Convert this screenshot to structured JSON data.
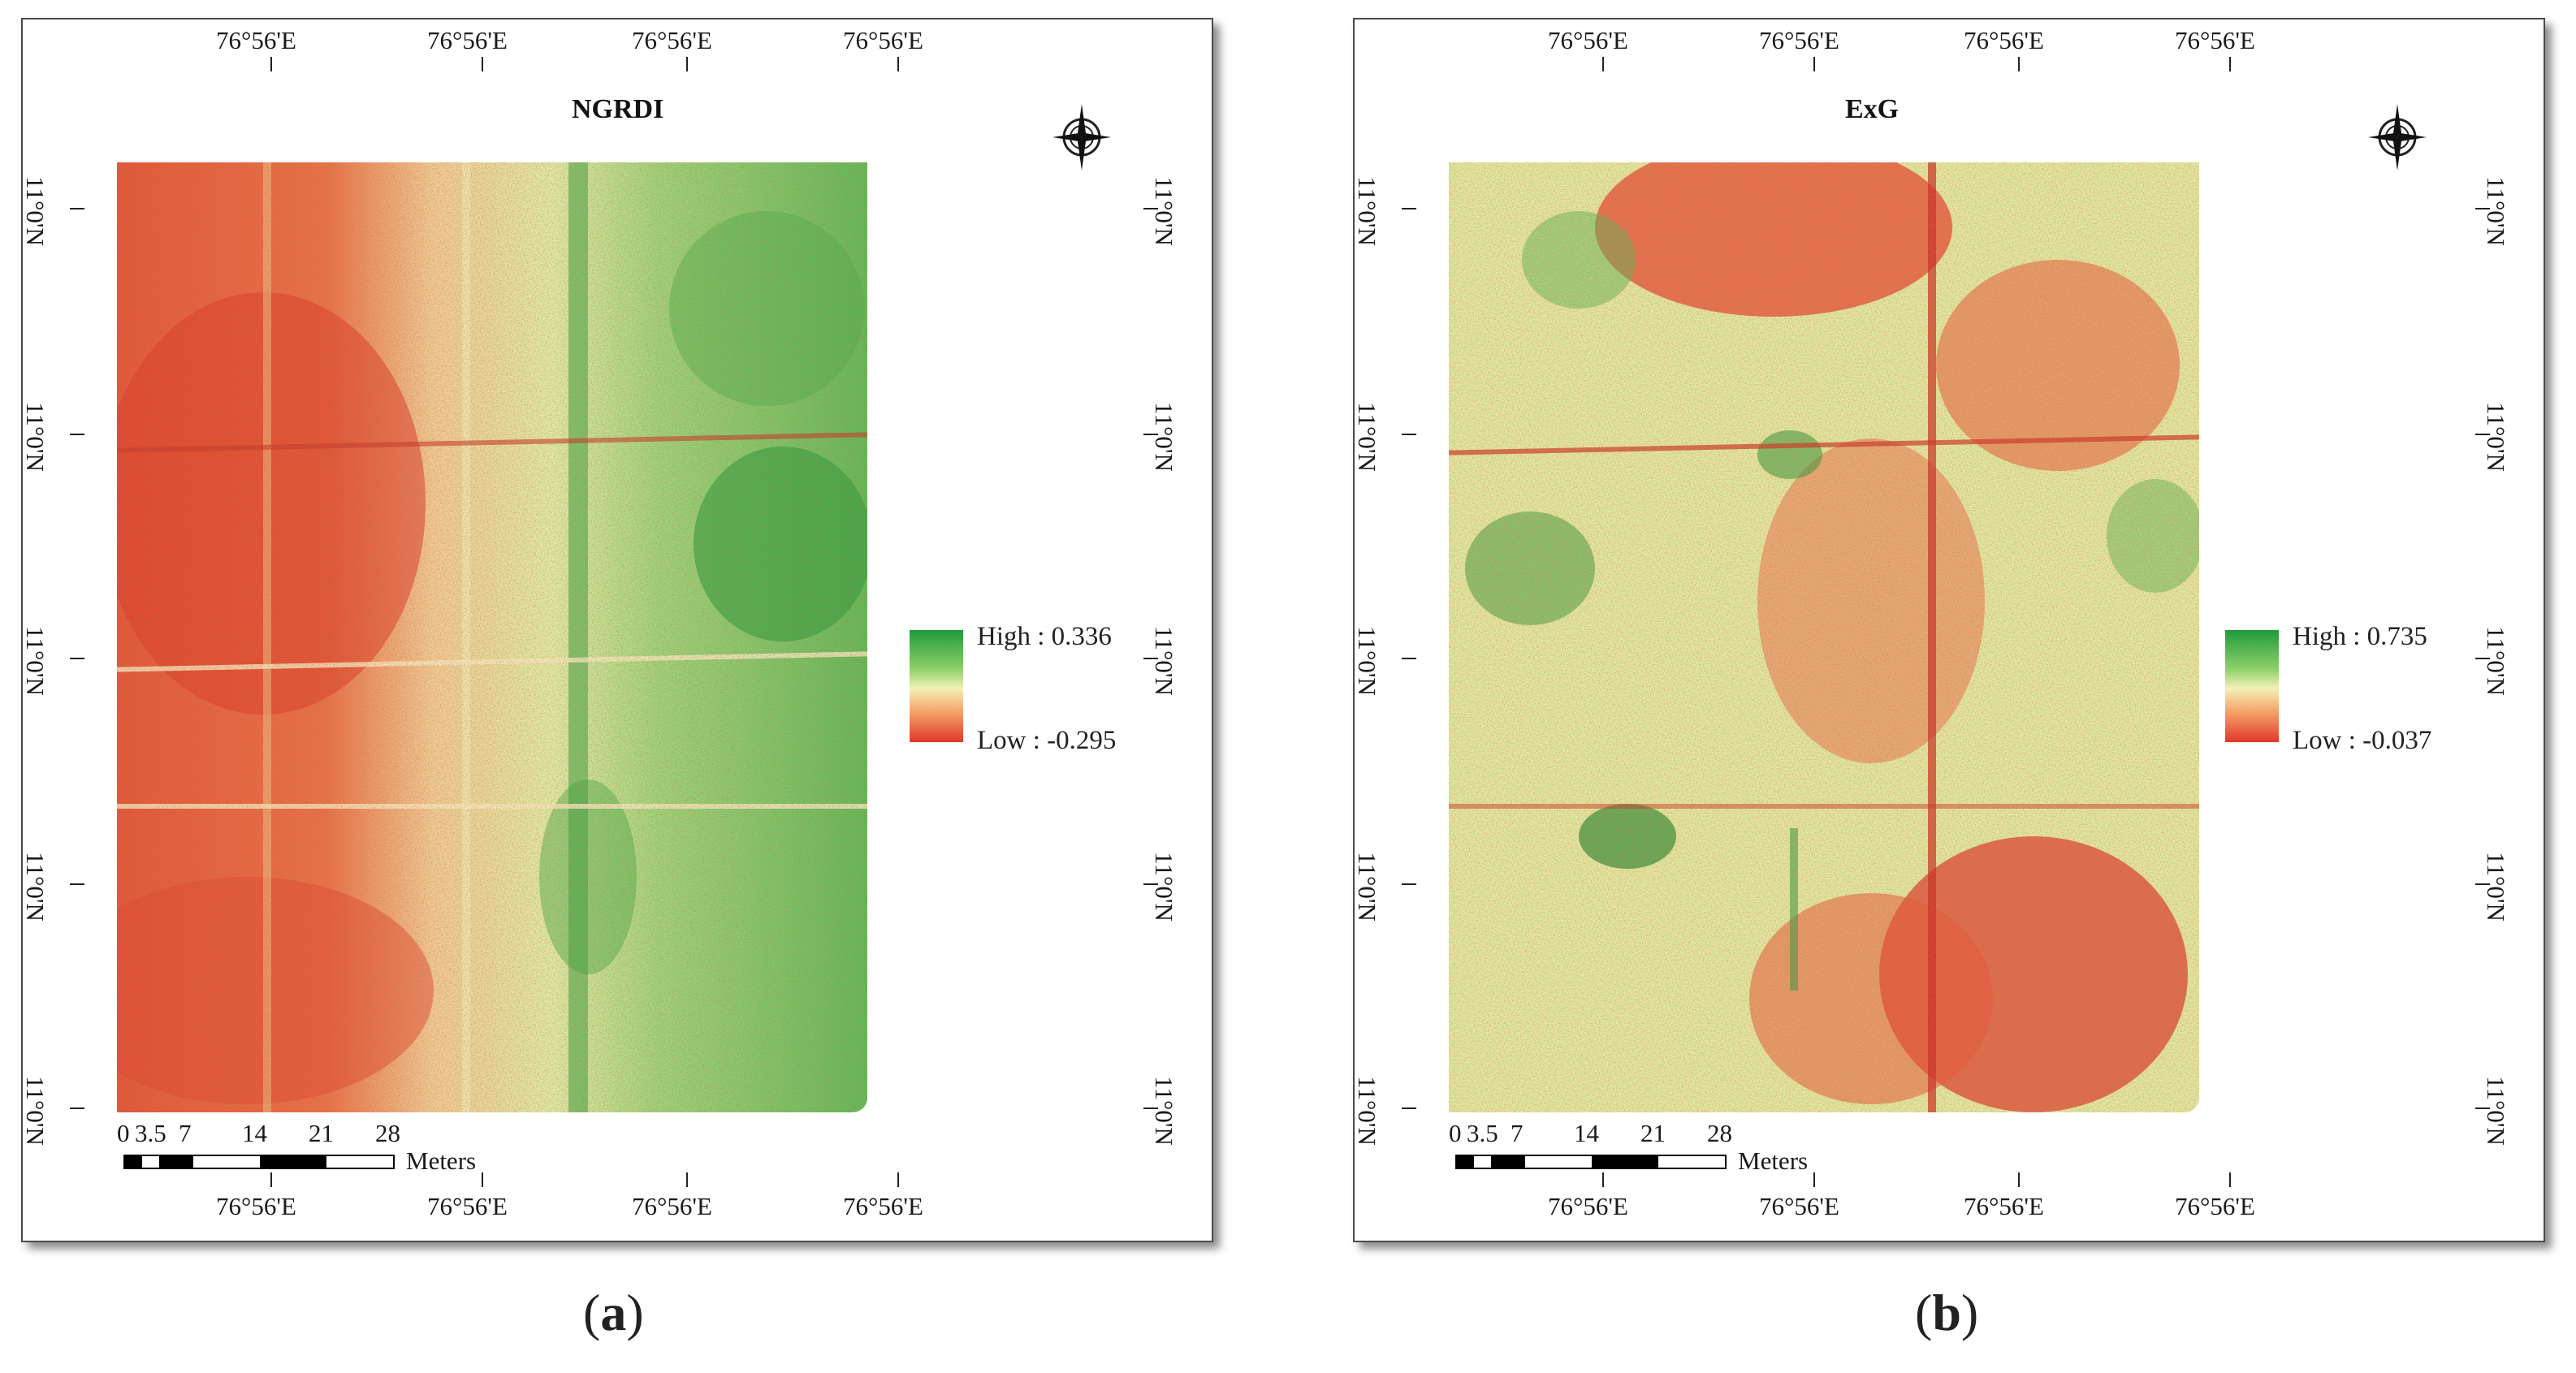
{
  "panels": [
    {
      "title": "NGRDI",
      "top_lon": [
        "76°56'E",
        "76°56'E",
        "76°56'E",
        "76°56'E"
      ],
      "bottom_lon": [
        "76°56'E",
        "76°56'E",
        "76°56'E",
        "76°56'E"
      ],
      "lat": [
        "11°0'N",
        "11°0'N",
        "11°0'N",
        "11°0'N",
        "11°0'N"
      ],
      "legend_high": "High : 0.336",
      "legend_low": "Low : -0.295",
      "scale_ticks": [
        "0",
        "3.5",
        "7",
        "14",
        "21",
        "28"
      ],
      "scale_unit": "Meters",
      "caption_letter": "a"
    },
    {
      "title": "ExG",
      "top_lon": [
        "76°56'E",
        "76°56'E",
        "76°56'E",
        "76°56'E"
      ],
      "bottom_lon": [
        "76°56'E",
        "76°56'E",
        "76°56'E",
        "76°56'E"
      ],
      "lat": [
        "11°0'N",
        "11°0'N",
        "11°0'N",
        "11°0'N",
        "11°0'N"
      ],
      "legend_high": "High : 0.735",
      "legend_low": "Low : -0.037",
      "scale_ticks": [
        "0",
        "3.5",
        "7",
        "14",
        "21",
        "28"
      ],
      "scale_unit": "Meters",
      "caption_letter": "b"
    }
  ],
  "colors": {
    "high": "#1f9a3c",
    "mid": "#f3f0b7",
    "low": "#e0382a"
  },
  "compass_icon": "north-arrow-icon"
}
